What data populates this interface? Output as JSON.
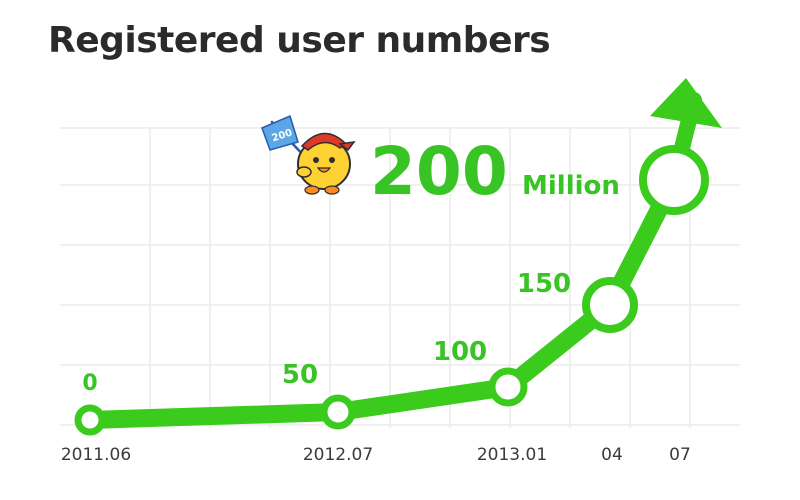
{
  "title": "Registered user numbers",
  "colors": {
    "accent": "#3acb1d",
    "label": "#39c425",
    "text": "#2b2b2b",
    "grid": "#ececec"
  },
  "headline": {
    "value": "200",
    "unit": "Million"
  },
  "mascot": {
    "name": "chick-mascot-icon",
    "flag_text": "200"
  },
  "chart_data": {
    "type": "line",
    "title": "Registered user numbers",
    "x": [
      "2011.06",
      "2012.07",
      "2013.01",
      "2013.04",
      "2013.07"
    ],
    "tick_labels": [
      "2011.06",
      "2012.07",
      "2013.01",
      "04",
      "07"
    ],
    "y_unit": "Million",
    "series": [
      {
        "values": [
          0,
          50,
          100,
          150,
          200
        ],
        "labels": [
          "0",
          "50",
          "100",
          "150",
          "200"
        ]
      }
    ],
    "end_arrow": true,
    "grid": true
  }
}
